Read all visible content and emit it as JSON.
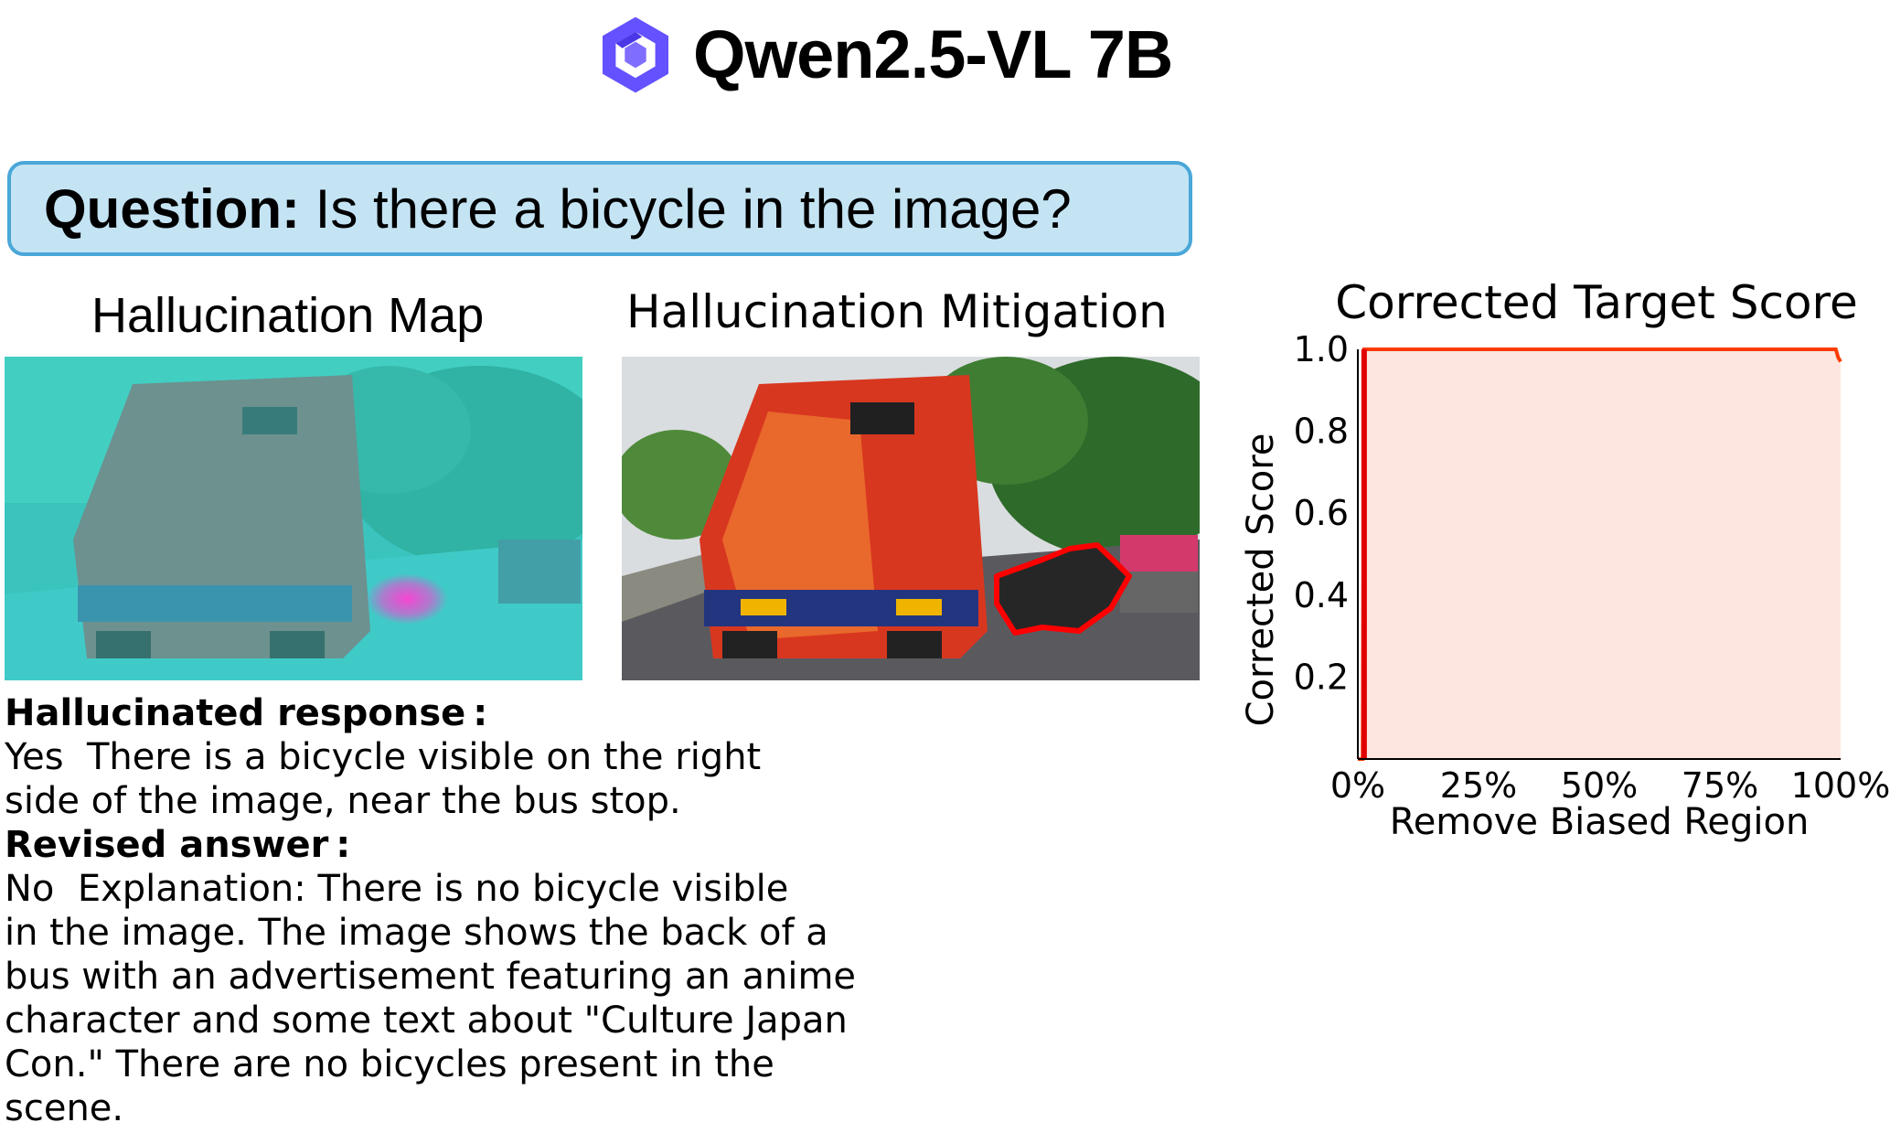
{
  "header": {
    "logo_icon": "qwen-logo-icon",
    "title": "Qwen2.5-VL 7B",
    "logo_color": "#6451ff"
  },
  "question": {
    "label": "Question:",
    "text": "Is there a bicycle in the image?",
    "box_color": "#c4e4f4",
    "border_color": "#4aa7d8"
  },
  "panels": {
    "map_title": "Hallucination Map",
    "mitigation_title": "Hallucination Mitigation",
    "map_tint": "#35d9d4",
    "highlight_color": "#ff3fd2",
    "outline_color": "#ff0000"
  },
  "responses": {
    "hallucinated_label": "Hallucinated response :",
    "hallucinated_lines": [
      "Yes  There is a bicycle visible on the right",
      "side of the image, near the bus stop."
    ],
    "revised_label": "Revised answer :",
    "revised_lines": [
      "No  Explanation: There is no bicycle visible",
      "in the image. The image shows the back of a",
      "bus with an advertisement featuring an anime",
      "character and some text about \"Culture Japan",
      "Con.\" There are no bicycles present in the",
      "scene."
    ]
  },
  "chart_data": {
    "type": "area",
    "title": "Corrected Target Score",
    "xlabel": "Remove Biased Region",
    "ylabel": "Corrected Score",
    "x_ticks": [
      "0%",
      "25%",
      "50%",
      "75%",
      "100%"
    ],
    "y_ticks": [
      "0.2",
      "0.4",
      "0.6",
      "0.8",
      "1.0"
    ],
    "xlim": [
      0,
      100
    ],
    "ylim": [
      0,
      1.0
    ],
    "x": [
      0,
      0.2,
      1,
      1.3,
      2,
      25,
      50,
      75,
      99,
      99.5,
      100
    ],
    "y": [
      0.0,
      0.0,
      0.0,
      1.0,
      1.0,
      1.0,
      1.0,
      1.0,
      1.0,
      0.98,
      0.97
    ],
    "line_color": "#ff3c00",
    "fill_color": "#fde6df",
    "grid": false
  }
}
